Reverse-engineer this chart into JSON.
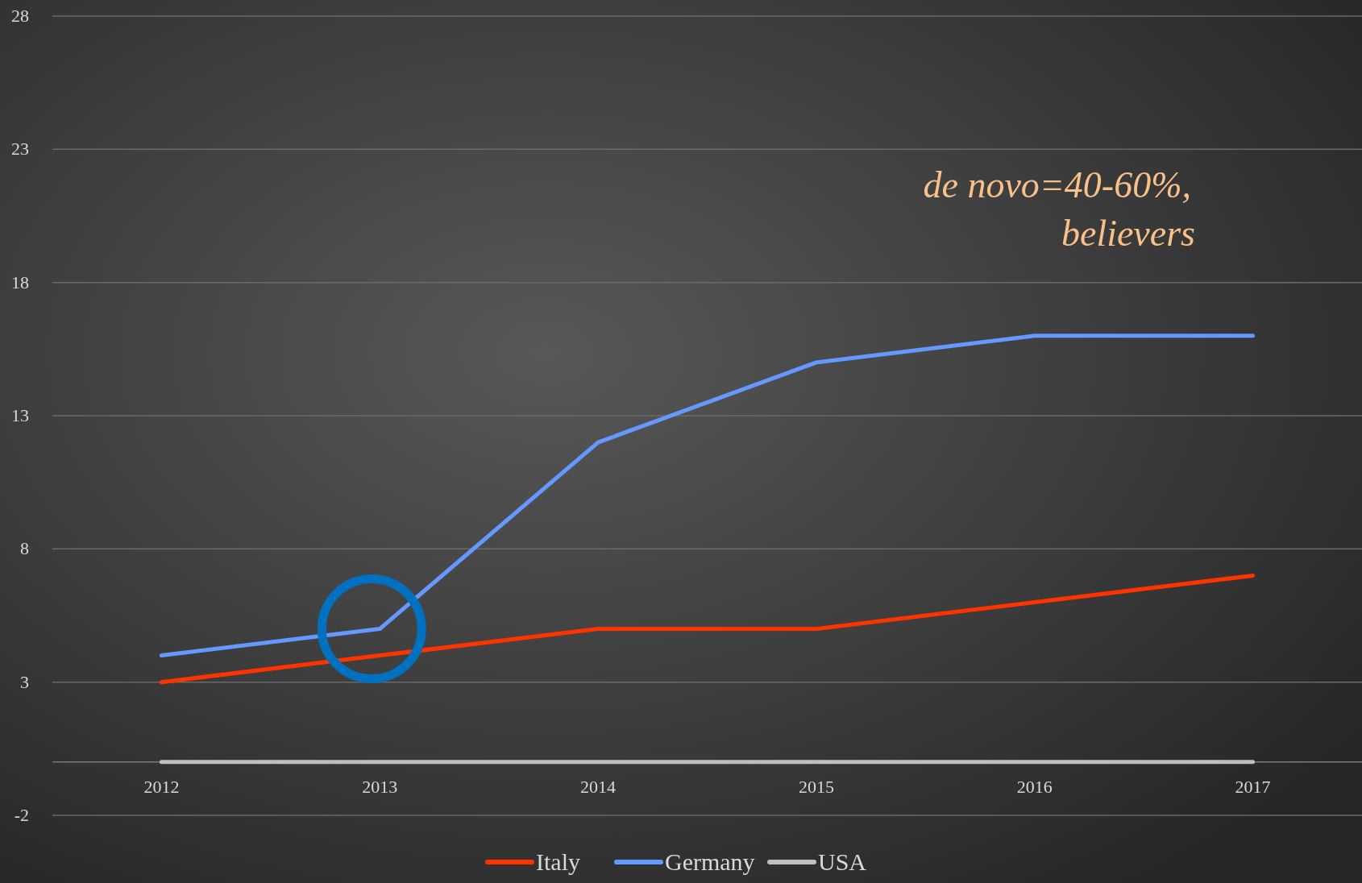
{
  "chart_data": {
    "type": "line",
    "categories": [
      "2012",
      "2013",
      "2014",
      "2015",
      "2016",
      "2017"
    ],
    "series": [
      {
        "name": "Italy",
        "color": "#ff3300",
        "values": [
          3,
          4,
          5,
          5,
          6,
          7
        ]
      },
      {
        "name": "Germany",
        "color": "#6699ff",
        "values": [
          4,
          5,
          12,
          15,
          16,
          16
        ]
      },
      {
        "name": "USA",
        "color": "#bfbfbf",
        "values": [
          0,
          0,
          0,
          0,
          0,
          0
        ]
      }
    ],
    "ylim": [
      -2,
      28
    ],
    "yticks": [
      -2,
      3,
      8,
      13,
      18,
      23,
      28
    ],
    "grid": "y",
    "legend": "bottom",
    "marker": "none",
    "line_style": "solid",
    "annotations": [
      "de novo=40-60%, believers"
    ]
  }
}
